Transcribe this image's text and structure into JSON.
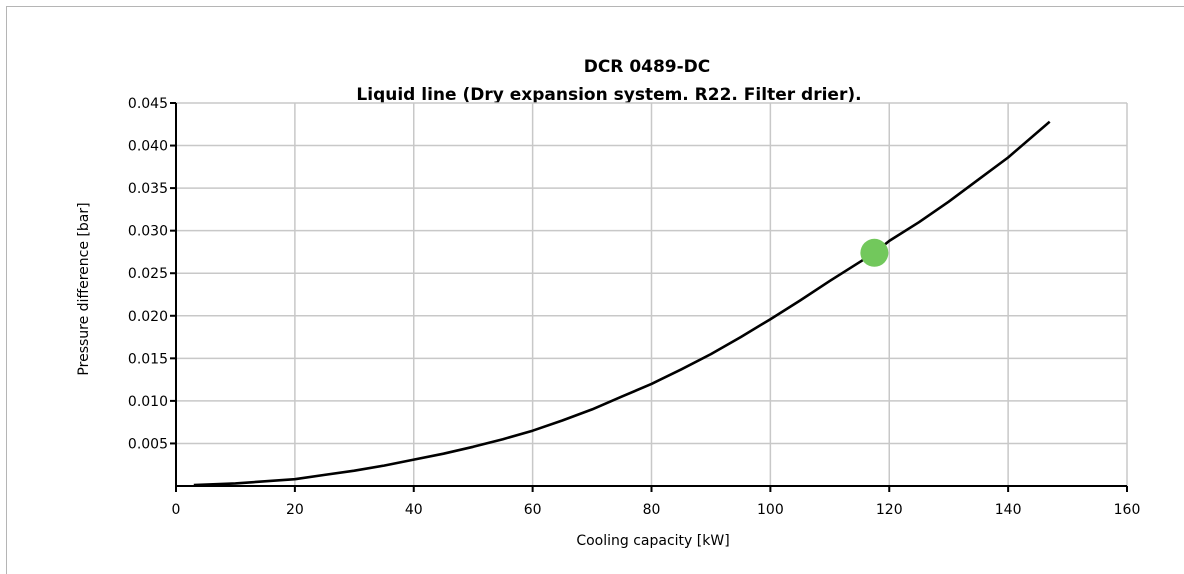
{
  "chart_data": {
    "type": "line",
    "title": "DCR 0489-DC",
    "subtitle": "Liquid line (Dry expansion system. R22. Filter drier).",
    "xlabel": "Cooling capacity [kW]",
    "ylabel": "Pressure difference [bar]",
    "xlim": [
      0,
      160
    ],
    "ylim": [
      0,
      0.045
    ],
    "x_ticks": [
      "0",
      "20",
      "40",
      "60",
      "80",
      "100",
      "120",
      "140",
      "160"
    ],
    "y_ticks": [
      "0.005",
      "0.010",
      "0.015",
      "0.020",
      "0.025",
      "0.030",
      "0.035",
      "0.040",
      "0.045"
    ],
    "grid": true,
    "series": [
      {
        "x": [
          3,
          10,
          20,
          25,
          30,
          35,
          40,
          45,
          50,
          55,
          60,
          65,
          70,
          75,
          80,
          85,
          90,
          95,
          100,
          105,
          110,
          115,
          117.5,
          120,
          125,
          130,
          135,
          140,
          147
        ],
        "y": [
          0.0001,
          0.0003,
          0.0008,
          0.0013,
          0.0018,
          0.0024,
          0.0031,
          0.0038,
          0.0046,
          0.0055,
          0.0065,
          0.0077,
          0.009,
          0.0105,
          0.012,
          0.0137,
          0.0155,
          0.0175,
          0.0196,
          0.0218,
          0.0241,
          0.0263,
          0.0274,
          0.0288,
          0.031,
          0.0334,
          0.036,
          0.0386,
          0.0428
        ],
        "color": "#000000"
      }
    ],
    "operating_point": {
      "x": 117.5,
      "y": 0.0274,
      "color": "#72c85c"
    }
  }
}
